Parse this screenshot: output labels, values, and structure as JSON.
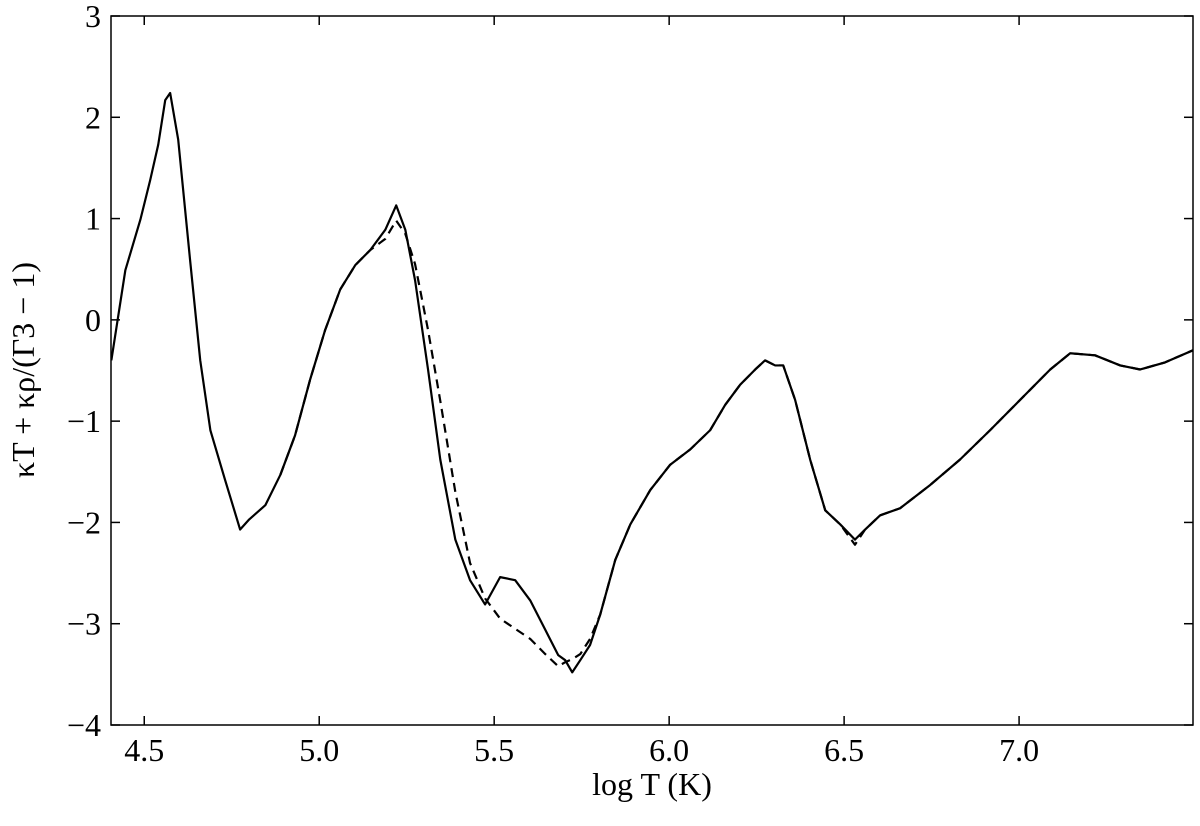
{
  "chart_data": {
    "type": "line",
    "x_label": "log T (K)",
    "y_label": "κT + κρ/(Γ3 − 1)",
    "xlim": [
      4.405,
      7.497
    ],
    "ylim": [
      -4,
      3
    ],
    "xticks": [
      4.5,
      {
        "value": 5,
        "label": "5.0"
      },
      5.5,
      {
        "value": 6,
        "label": "6.0"
      },
      6.5,
      {
        "value": 7,
        "label": "7.0"
      }
    ],
    "yticks": [
      {
        "value": -4,
        "label": "−4"
      },
      {
        "value": -3,
        "label": "−3"
      },
      {
        "value": -2,
        "label": "−2"
      },
      {
        "value": -1,
        "label": "−1"
      },
      0,
      1,
      2,
      3
    ],
    "x": [
      4.406,
      4.446,
      4.489,
      4.517,
      4.54,
      4.56,
      4.574,
      4.597,
      4.631,
      4.66,
      4.689,
      4.731,
      4.774,
      4.8,
      4.846,
      4.889,
      4.931,
      4.974,
      5.017,
      5.06,
      5.103,
      5.146,
      5.189,
      5.22,
      5.246,
      5.274,
      5.311,
      5.346,
      5.389,
      5.431,
      5.474,
      5.517,
      5.56,
      5.603,
      5.646,
      5.683,
      5.703,
      5.723,
      5.746,
      5.774,
      5.803,
      5.846,
      5.889,
      5.946,
      6.003,
      6.06,
      6.117,
      6.16,
      6.203,
      6.246,
      6.274,
      6.303,
      6.326,
      6.36,
      6.403,
      6.446,
      6.489,
      6.531,
      6.56,
      6.603,
      6.66,
      6.746,
      6.831,
      6.917,
      7.003,
      7.089,
      7.146,
      7.217,
      7.289,
      7.346,
      7.417,
      7.497
    ],
    "series": [
      {
        "color": "#000000",
        "dash": "solid",
        "values": [
          -0.4,
          0.49,
          0.99,
          1.38,
          1.73,
          2.17,
          2.24,
          1.78,
          0.59,
          -0.4,
          -1.09,
          -1.58,
          -2.07,
          -1.97,
          -1.83,
          -1.53,
          -1.14,
          -0.59,
          -0.1,
          0.3,
          0.54,
          0.69,
          0.89,
          1.13,
          0.89,
          0.39,
          -0.49,
          -1.38,
          -2.17,
          -2.57,
          -2.81,
          -2.54,
          -2.57,
          -2.77,
          -3.06,
          -3.31,
          -3.36,
          -3.48,
          -3.36,
          -3.21,
          -2.91,
          -2.37,
          -2.02,
          -1.68,
          -1.43,
          -1.28,
          -1.09,
          -0.84,
          -0.64,
          -0.49,
          -0.4,
          -0.45,
          -0.45,
          -0.79,
          -1.38,
          -1.88,
          -2.02,
          -2.17,
          -2.07,
          -1.93,
          -1.86,
          -1.63,
          -1.38,
          -1.09,
          -0.79,
          -0.49,
          -0.33,
          -0.35,
          -0.45,
          -0.49,
          -0.42,
          -0.3
        ]
      },
      {
        "color": "#000000",
        "dash": "dashed",
        "values": [
          null,
          null,
          null,
          null,
          null,
          null,
          null,
          null,
          null,
          null,
          null,
          null,
          null,
          null,
          null,
          -1.53,
          -1.14,
          -0.59,
          -0.1,
          0.3,
          0.54,
          0.69,
          0.8,
          0.98,
          0.85,
          0.55,
          -0.1,
          -0.8,
          -1.7,
          -2.4,
          -2.75,
          -2.95,
          -3.05,
          -3.15,
          -3.3,
          -3.42,
          -3.38,
          -3.35,
          -3.3,
          -3.15,
          -2.91,
          -2.37,
          -2.02,
          -1.68,
          -1.43,
          -1.28,
          -1.09,
          -0.84,
          -0.64,
          -0.49,
          -0.4,
          -0.45,
          -0.45,
          -0.79,
          -1.38,
          -1.88,
          -2.02,
          -2.22,
          -2.07,
          -1.93,
          -1.86,
          -1.63,
          -1.38,
          -1.09,
          -0.79,
          -0.49,
          -0.33,
          -0.35,
          -0.45,
          -0.49,
          -0.42,
          -0.3
        ]
      }
    ]
  }
}
